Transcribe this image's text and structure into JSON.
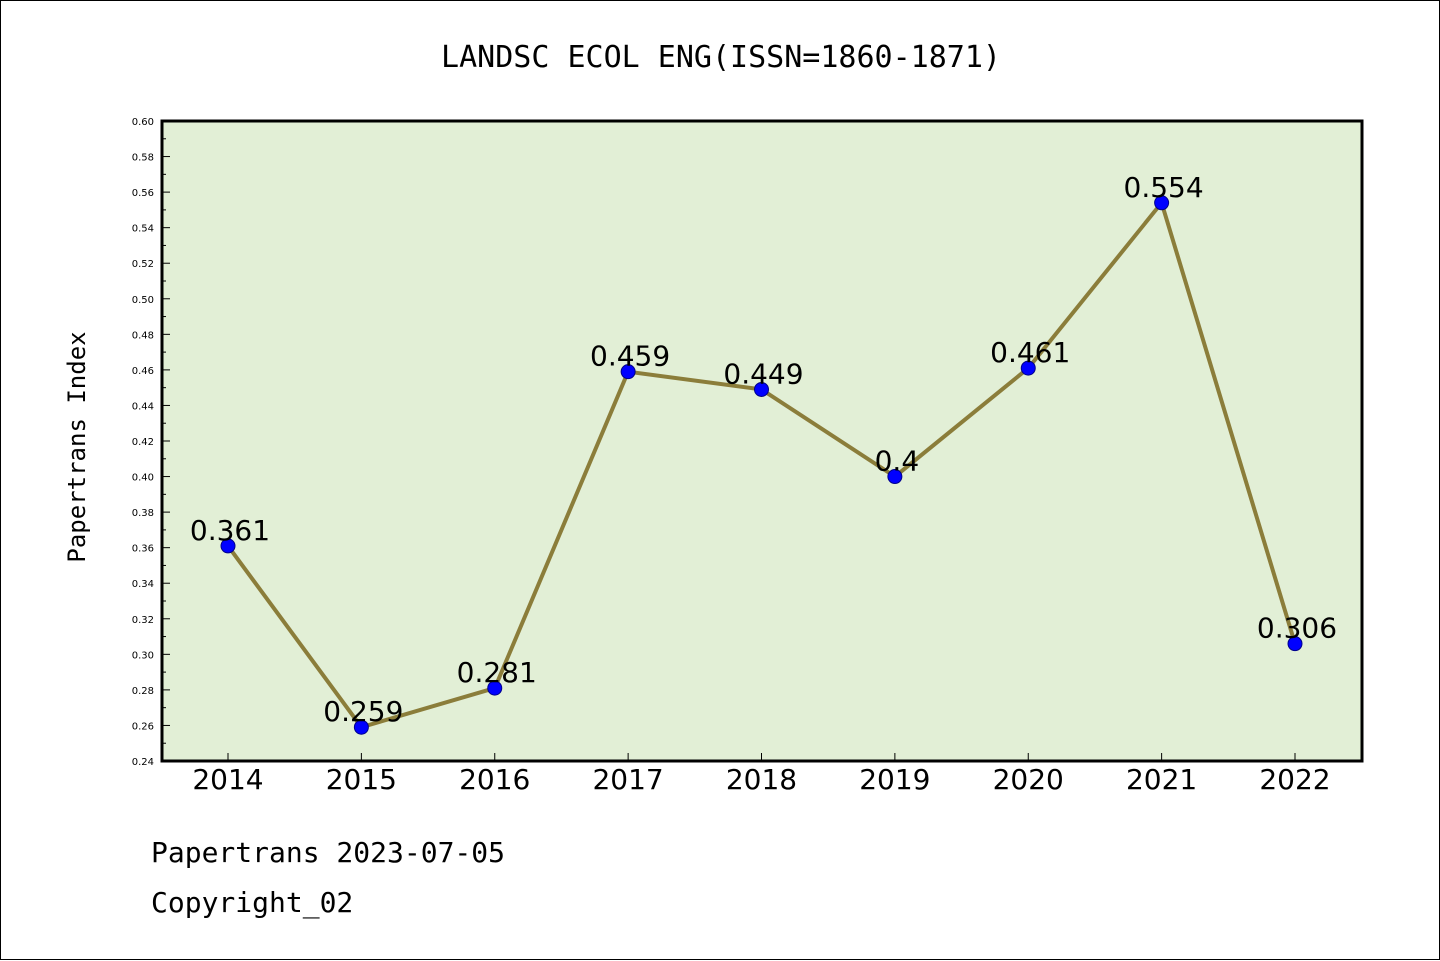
{
  "chart_data": {
    "type": "line",
    "title": "LANDSC ECOL ENG(ISSN=1860-1871)",
    "xlabel": "",
    "ylabel": "Papertrans Index",
    "categories": [
      "2014",
      "2015",
      "2016",
      "2017",
      "2018",
      "2019",
      "2020",
      "2021",
      "2022"
    ],
    "values": [
      0.361,
      0.259,
      0.281,
      0.459,
      0.449,
      0.4,
      0.461,
      0.554,
      0.306
    ],
    "data_labels": [
      "0.361",
      "0.259",
      "0.281",
      "0.459",
      "0.449",
      "0.4",
      "0.461",
      "0.554",
      "0.306"
    ],
    "ylim": [
      0.24,
      0.6
    ],
    "yticks": [
      "0.24",
      "0.26",
      "0.28",
      "0.30",
      "0.32",
      "0.34",
      "0.36",
      "0.38",
      "0.40",
      "0.42",
      "0.44",
      "0.46",
      "0.48",
      "0.50",
      "0.52",
      "0.54",
      "0.56",
      "0.58",
      "0.60"
    ],
    "grid": false,
    "legend": "none",
    "colors": {
      "plot_background": "#e2efd6",
      "line": "#8b7d3a",
      "marker": "#0000ff"
    }
  },
  "footer": {
    "line1": "Papertrans 2023-07-05",
    "line2": "Copyright_02"
  }
}
